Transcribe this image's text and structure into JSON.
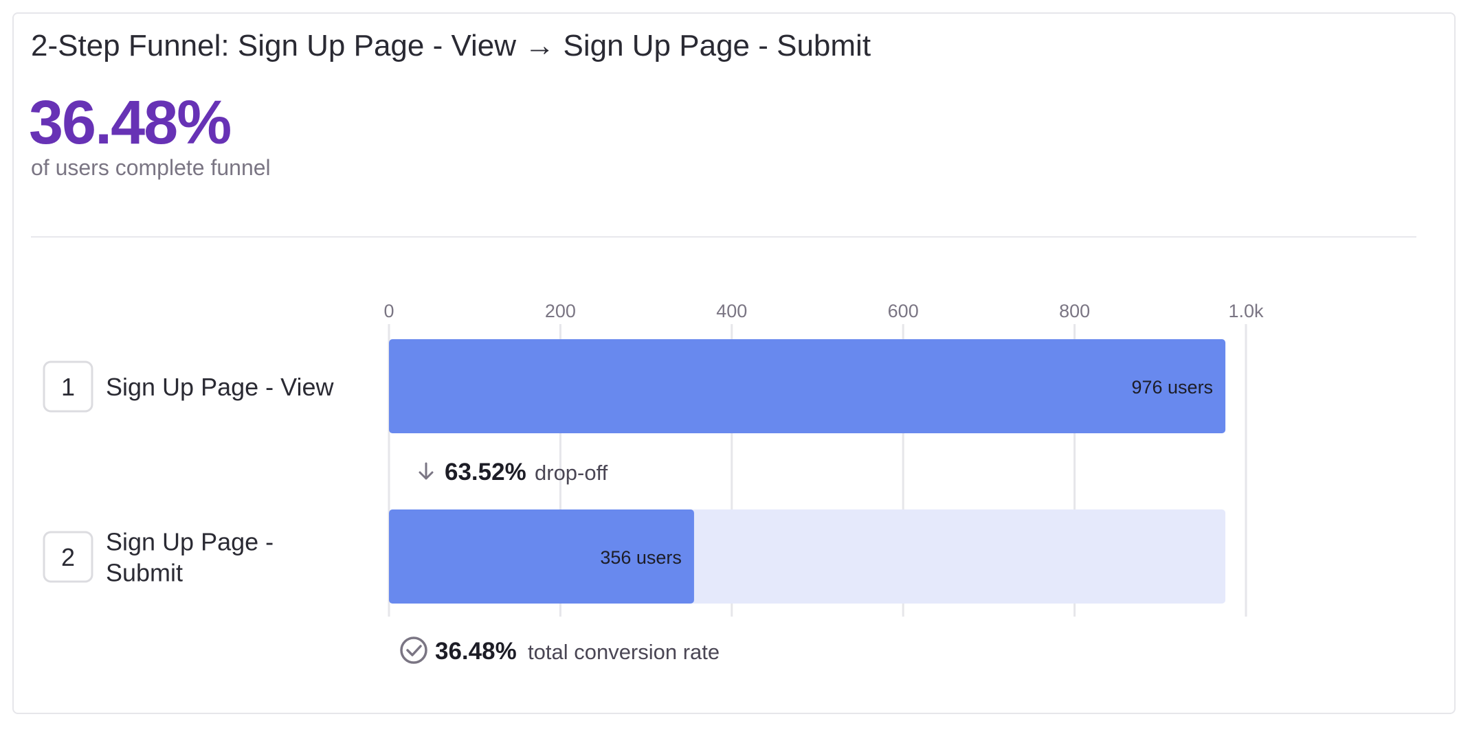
{
  "header": {
    "title": "2-Step Funnel: Sign Up Page - View → Sign Up Page - Submit",
    "big_value": "36.48%",
    "subtitle": "of users complete funnel"
  },
  "colors": {
    "accent": "#6732b5",
    "bar": "#6889ee",
    "bar_bg": "#e5e9fb",
    "grid": "#e6e6ea",
    "text": "#2a2a33",
    "muted": "#7a7583"
  },
  "chart_data": {
    "type": "bar",
    "orientation": "horizontal",
    "xlim": [
      0,
      1000
    ],
    "ticks": [
      0,
      200,
      400,
      600,
      800,
      1000
    ],
    "tick_labels": [
      "0",
      "200",
      "400",
      "600",
      "800",
      "1.0k"
    ],
    "steps": [
      {
        "number": "1",
        "label_lines": [
          "Sign Up Page - View"
        ],
        "value": 976,
        "value_label": "976 users"
      },
      {
        "number": "2",
        "label_lines": [
          "Sign Up Page -",
          "Submit"
        ],
        "value": 356,
        "value_label": "356 users"
      }
    ],
    "dropoff": {
      "value": "63.52%",
      "label": "drop-off"
    },
    "conversion": {
      "value": "36.48%",
      "label": "total conversion rate"
    }
  }
}
